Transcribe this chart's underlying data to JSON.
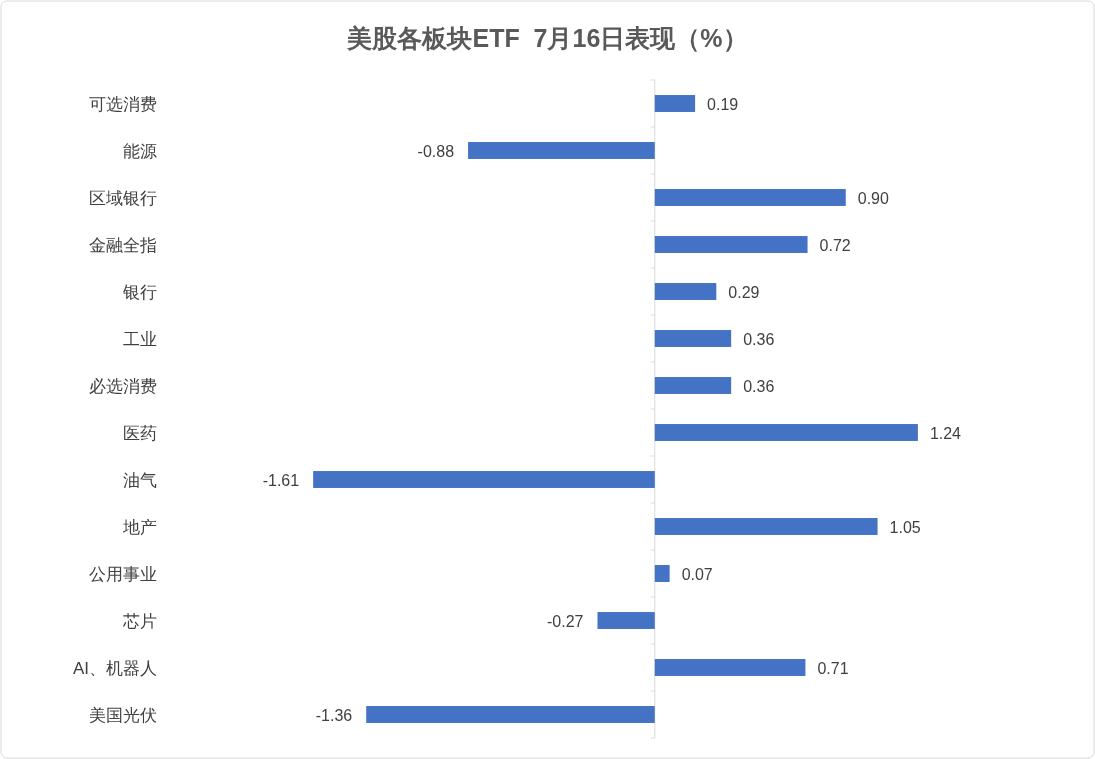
{
  "chart_data": {
    "type": "bar",
    "orientation": "horizontal",
    "title": "美股各板块ETF  7月16日表现（%）",
    "categories": [
      "可选消费",
      "能源",
      "区域银行",
      "金融全指",
      "银行",
      "工业",
      "必选消费",
      "医药",
      "油气",
      "地产",
      "公用事业",
      "芯片",
      "AI、机器人",
      "美国光伏"
    ],
    "values": [
      0.19,
      -0.88,
      0.9,
      0.72,
      0.29,
      0.36,
      0.36,
      1.24,
      -1.61,
      1.05,
      0.07,
      -0.27,
      0.71,
      -1.36
    ],
    "value_labels": [
      "0.19",
      "-0.88",
      "0.90",
      "0.72",
      "0.29",
      "0.36",
      "0.36",
      "1.24",
      "-1.61",
      "1.05",
      "0.07",
      "-0.27",
      "0.71",
      "-1.36"
    ],
    "color": "#4472c4"
  }
}
